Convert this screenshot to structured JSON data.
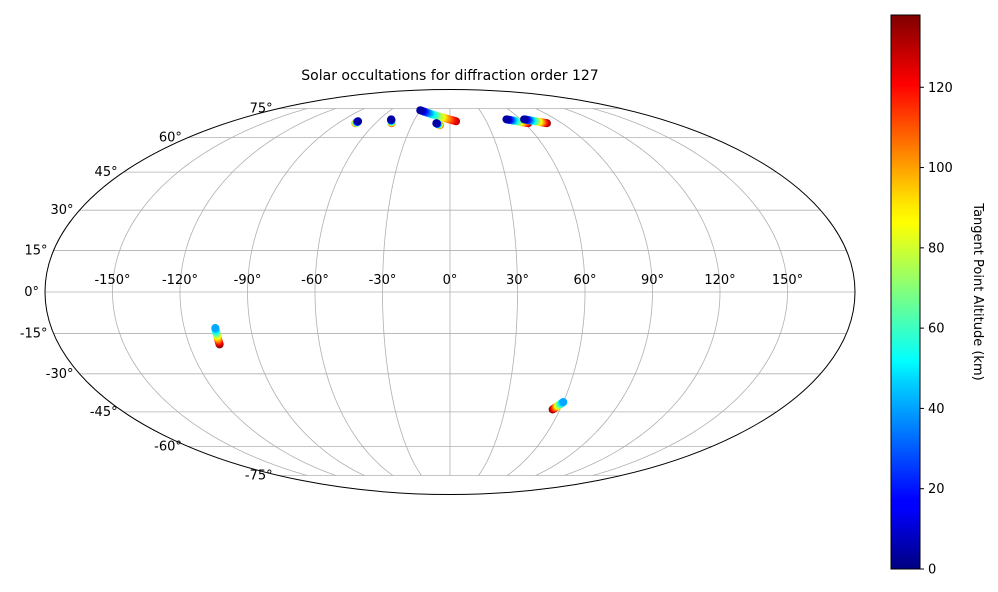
{
  "chart_data": {
    "type": "scatter",
    "projection": "mollweide",
    "title": "Solar occultations for diffraction order 127",
    "grid": true,
    "lon_ticks": [
      -150,
      -120,
      -90,
      -60,
      -30,
      0,
      30,
      60,
      90,
      120,
      150
    ],
    "lon_tick_labels": [
      "-150°",
      "-120°",
      "-90°",
      "-60°",
      "-30°",
      "0°",
      "30°",
      "60°",
      "90°",
      "120°",
      "150°"
    ],
    "lat_ticks": [
      -75,
      -60,
      -45,
      -30,
      -15,
      0,
      15,
      30,
      45,
      60,
      75
    ],
    "lat_tick_labels": [
      "-75°",
      "-60°",
      "-45°",
      "-30°",
      "-15°",
      "0°",
      "15°",
      "30°",
      "45°",
      "60°",
      "75°"
    ],
    "colorbar": {
      "label": "Tangent Point Altitude (km)",
      "colormap": "jet",
      "range": [
        0,
        138
      ],
      "ticks": [
        0,
        20,
        40,
        60,
        80,
        100,
        120
      ],
      "tick_labels": [
        "0",
        "20",
        "40",
        "60",
        "80",
        "100",
        "120"
      ]
    },
    "occultations": [
      {
        "lon_start": -106,
        "lat_start": -13,
        "lon_end": -106,
        "lat_end": -19,
        "alt_start": 40,
        "alt_end": 138
      },
      {
        "lon_start": -76,
        "lat_start": 68,
        "lon_end": -76,
        "lat_end": 67,
        "alt_start": 5,
        "alt_end": 110
      },
      {
        "lon_start": -50,
        "lat_start": 69,
        "lon_end": -47,
        "lat_end": 67,
        "alt_start": 5,
        "alt_end": 115
      },
      {
        "lon_start": -30,
        "lat_start": 74,
        "lon_end": 5,
        "lat_end": 68,
        "alt_start": 5,
        "alt_end": 130
      },
      {
        "lon_start": -11,
        "lat_start": 67,
        "lon_end": -8,
        "lat_end": 66,
        "alt_start": 5,
        "alt_end": 115
      },
      {
        "lon_start": 48,
        "lat_start": 69,
        "lon_end": 63,
        "lat_end": 67,
        "alt_start": 5,
        "alt_end": 130
      },
      {
        "lon_start": 63,
        "lat_start": 69,
        "lon_end": 78,
        "lat_end": 67,
        "alt_start": 5,
        "alt_end": 135
      },
      {
        "lon_start": 60,
        "lat_start": -41,
        "lon_end": 56,
        "lat_end": -44,
        "alt_start": 40,
        "alt_end": 138
      }
    ]
  }
}
